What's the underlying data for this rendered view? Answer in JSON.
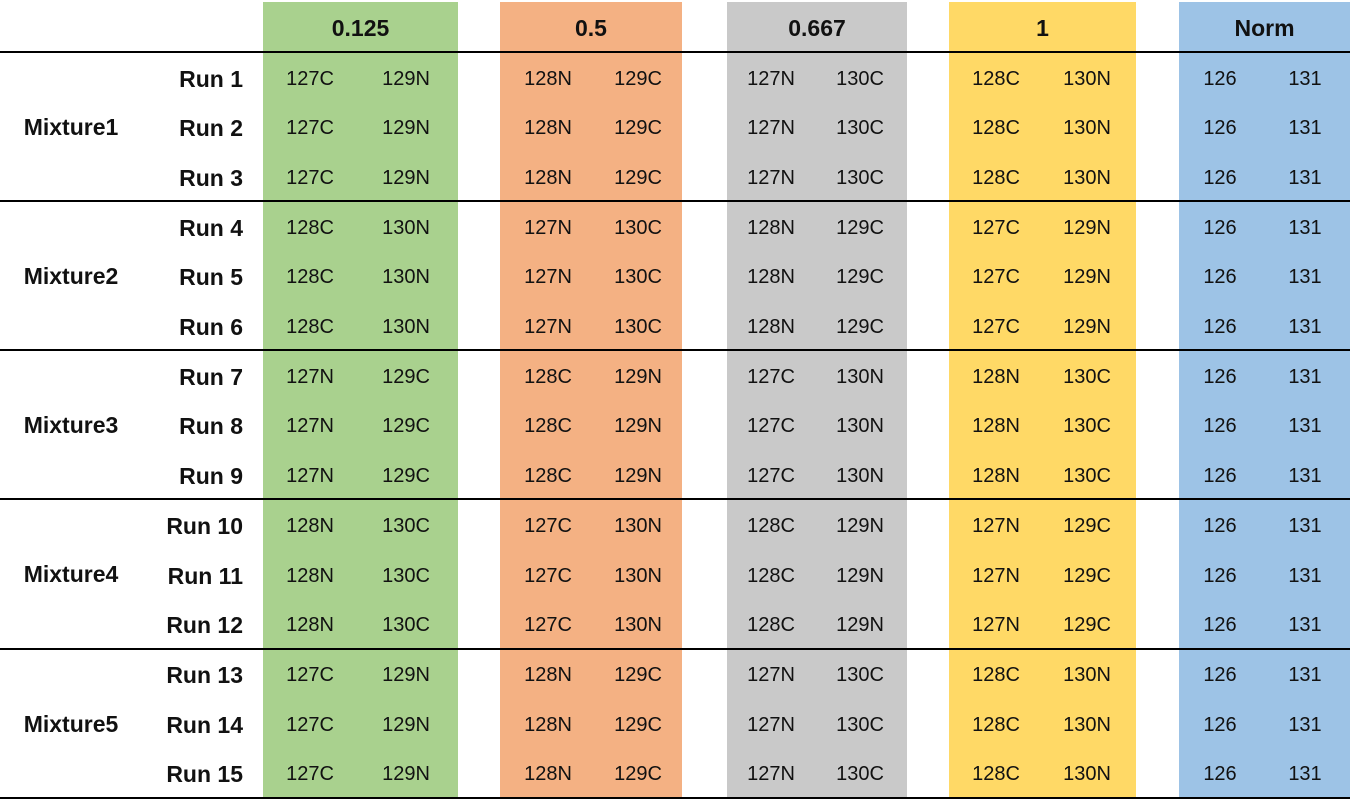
{
  "colors": {
    "ratio_0_125": "#a9d18e",
    "ratio_0_5": "#f4b183",
    "ratio_0_667": "#c9c9c9",
    "ratio_1": "#ffd966",
    "norm": "#9dc3e6",
    "gap": "#ffffff"
  },
  "headers": [
    "0.125",
    "0.5",
    "0.667",
    "1",
    "Norm"
  ],
  "mixtures": [
    {
      "label_line1": "Mixture",
      "label_line2": "1",
      "runs": [
        {
          "run": "Run 1",
          "cells": [
            "127C",
            "129N",
            "128N",
            "129C",
            "127N",
            "130C",
            "128C",
            "130N",
            "126",
            "131"
          ]
        },
        {
          "run": "Run 2",
          "cells": [
            "127C",
            "129N",
            "128N",
            "129C",
            "127N",
            "130C",
            "128C",
            "130N",
            "126",
            "131"
          ]
        },
        {
          "run": "Run 3",
          "cells": [
            "127C",
            "129N",
            "128N",
            "129C",
            "127N",
            "130C",
            "128C",
            "130N",
            "126",
            "131"
          ]
        }
      ]
    },
    {
      "label_line1": "Mixture",
      "label_line2": "2",
      "runs": [
        {
          "run": "Run 4",
          "cells": [
            "128C",
            "130N",
            "127N",
            "130C",
            "128N",
            "129C",
            "127C",
            "129N",
            "126",
            "131"
          ]
        },
        {
          "run": "Run 5",
          "cells": [
            "128C",
            "130N",
            "127N",
            "130C",
            "128N",
            "129C",
            "127C",
            "129N",
            "126",
            "131"
          ]
        },
        {
          "run": "Run 6",
          "cells": [
            "128C",
            "130N",
            "127N",
            "130C",
            "128N",
            "129C",
            "127C",
            "129N",
            "126",
            "131"
          ]
        }
      ]
    },
    {
      "label_line1": "Mixture",
      "label_line2": "3",
      "runs": [
        {
          "run": "Run 7",
          "cells": [
            "127N",
            "129C",
            "128C",
            "129N",
            "127C",
            "130N",
            "128N",
            "130C",
            "126",
            "131"
          ]
        },
        {
          "run": "Run 8",
          "cells": [
            "127N",
            "129C",
            "128C",
            "129N",
            "127C",
            "130N",
            "128N",
            "130C",
            "126",
            "131"
          ]
        },
        {
          "run": "Run 9",
          "cells": [
            "127N",
            "129C",
            "128C",
            "129N",
            "127C",
            "130N",
            "128N",
            "130C",
            "126",
            "131"
          ]
        }
      ]
    },
    {
      "label_line1": "Mixture",
      "label_line2": "4",
      "runs": [
        {
          "run": "Run 10",
          "cells": [
            "128N",
            "130C",
            "127C",
            "130N",
            "128C",
            "129N",
            "127N",
            "129C",
            "126",
            "131"
          ]
        },
        {
          "run": "Run 11",
          "cells": [
            "128N",
            "130C",
            "127C",
            "130N",
            "128C",
            "129N",
            "127N",
            "129C",
            "126",
            "131"
          ]
        },
        {
          "run": "Run 12",
          "cells": [
            "128N",
            "130C",
            "127C",
            "130N",
            "128C",
            "129N",
            "127N",
            "129C",
            "126",
            "131"
          ]
        }
      ]
    },
    {
      "label_line1": "Mixture",
      "label_line2": "5",
      "runs": [
        {
          "run": "Run 13",
          "cells": [
            "127C",
            "129N",
            "128N",
            "129C",
            "127N",
            "130C",
            "128C",
            "130N",
            "126",
            "131"
          ]
        },
        {
          "run": "Run 14",
          "cells": [
            "127C",
            "129N",
            "128N",
            "129C",
            "127N",
            "130C",
            "128C",
            "130N",
            "126",
            "131"
          ]
        },
        {
          "run": "Run 15",
          "cells": [
            "127C",
            "129N",
            "128N",
            "129C",
            "127N",
            "130C",
            "128C",
            "130N",
            "126",
            "131"
          ]
        }
      ]
    }
  ]
}
